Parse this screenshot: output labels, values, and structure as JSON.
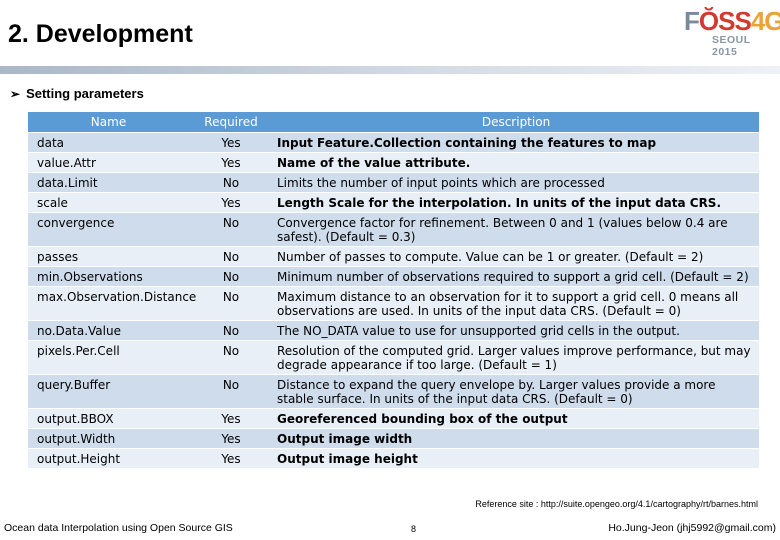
{
  "slide": {
    "title": "2. Development",
    "bullet": "Setting parameters",
    "reference": "Reference site : http://suite.opengeo.org/4.1/cartography/rt/barnes.html"
  },
  "logo": {
    "part1": "F",
    "part2": "ŎSS",
    "part3": "4G",
    "sub": "SEOUL 2015"
  },
  "table": {
    "headers": [
      "Name",
      "Required",
      "Description"
    ],
    "rows": [
      {
        "name": "data",
        "required": "Yes",
        "description": "Input Feature.Collection containing the features to map"
      },
      {
        "name": "value.Attr",
        "required": "Yes",
        "description": "Name of the value attribute."
      },
      {
        "name": "data.Limit",
        "required": "No",
        "description": "Limits the number of input points which are processed"
      },
      {
        "name": "scale",
        "required": "Yes",
        "description": "Length Scale for the interpolation. In units of the input data CRS."
      },
      {
        "name": "convergence",
        "required": "No",
        "description": "Convergence factor for refinement. Between 0 and 1 (values below 0.4 are safest). (Default = 0.3)"
      },
      {
        "name": "passes",
        "required": "No",
        "description": "Number of passes to compute. Value can be 1 or greater. (Default = 2)"
      },
      {
        "name": "min.Observations",
        "required": "No",
        "description": "Minimum number of observations required to support a grid cell. (Default = 2)"
      },
      {
        "name": "max.Observation.Distance",
        "required": "No",
        "description": "Maximum distance to an observation for it to support a grid cell. 0 means all observations are used. In units of the input data CRS. (Default = 0)"
      },
      {
        "name": "no.Data.Value",
        "required": "No",
        "description": "The NO_DATA value to use for unsupported grid cells in the output."
      },
      {
        "name": "pixels.Per.Cell",
        "required": "No",
        "description": "Resolution of the computed grid. Larger values improve performance, but may degrade appearance if too large. (Default = 1)"
      },
      {
        "name": "query.Buffer",
        "required": "No",
        "description": "Distance to expand the query envelope by. Larger values provide a more stable surface. In units of the input data CRS. (Default = 0)"
      },
      {
        "name": "output.BBOX",
        "required": "Yes",
        "description": "Georeferenced bounding box of the output"
      },
      {
        "name": "output.Width",
        "required": "Yes",
        "description": "Output image width"
      },
      {
        "name": "output.Height",
        "required": "Yes",
        "description": "Output image height"
      }
    ]
  },
  "footer": {
    "left": "Ocean data Interpolation using Open Source GIS",
    "page": "8",
    "right": "Ho.Jung-Jeon (jhj5992@gmail.com)"
  }
}
